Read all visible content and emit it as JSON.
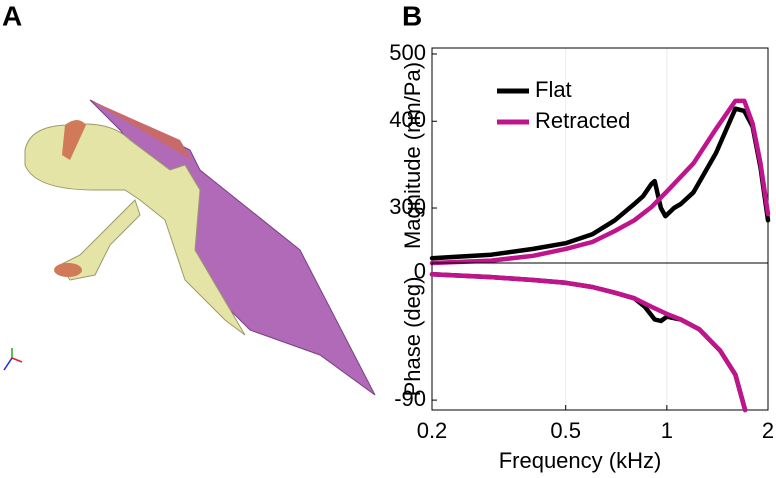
{
  "panels": [
    "A",
    "B"
  ],
  "chart_data": [
    {
      "type": "line",
      "ylabel": "Magnitude (nm/Pa)",
      "xscale": "log",
      "yscale": "log",
      "xlim": [
        0.2,
        2
      ],
      "ylim": [
        250,
        510
      ],
      "yticks": [
        300,
        400,
        500
      ],
      "grid": true,
      "legend": "upper left",
      "series": [
        {
          "name": "Flat",
          "color": "#000000",
          "x": [
            0.2,
            0.3,
            0.4,
            0.5,
            0.6,
            0.7,
            0.8,
            0.85,
            0.9,
            0.92,
            0.96,
            0.99,
            1.05,
            1.1,
            1.2,
            1.4,
            1.6,
            1.7,
            1.8,
            1.9,
            2
          ],
          "values": [
            254,
            257,
            262,
            267,
            275,
            288,
            304,
            312,
            325,
            328,
            300,
            292,
            300,
            304,
            316,
            360,
            417,
            414,
            393,
            343,
            288
          ]
        },
        {
          "name": "Retracted",
          "color": "#c0148c",
          "x": [
            0.2,
            0.3,
            0.4,
            0.5,
            0.6,
            0.7,
            0.8,
            0.9,
            1.0,
            1.2,
            1.4,
            1.6,
            1.7,
            1.8,
            1.9,
            2
          ],
          "values": [
            250,
            252,
            256,
            262,
            268,
            278,
            288,
            301,
            317,
            348,
            390,
            428,
            428,
            397,
            348,
            294
          ]
        }
      ]
    },
    {
      "type": "line",
      "ylabel": "Phase (deg)",
      "xlabel": "Frequency (kHz)",
      "xscale": "log",
      "xlim": [
        0.2,
        2
      ],
      "ylim": [
        -97,
        7
      ],
      "xticks": [
        0.2,
        0.5,
        1,
        2
      ],
      "yticks": [
        0,
        -90
      ],
      "grid": true,
      "series": [
        {
          "name": "Flat",
          "color": "#000000",
          "x": [
            0.2,
            0.3,
            0.4,
            0.5,
            0.6,
            0.7,
            0.8,
            0.86,
            0.92,
            0.96,
            1.0,
            1.1,
            1.25,
            1.44,
            1.6,
            1.71
          ],
          "values": [
            -1,
            -3,
            -5,
            -7,
            -10,
            -14,
            -18,
            -24,
            -33,
            -34,
            -31,
            -33,
            -40,
            -55,
            -72,
            -97
          ]
        },
        {
          "name": "Retracted",
          "color": "#c0148c",
          "x": [
            0.2,
            0.3,
            0.4,
            0.5,
            0.6,
            0.7,
            0.8,
            0.9,
            1.0,
            1.1,
            1.25,
            1.44,
            1.6,
            1.71
          ],
          "values": [
            -1,
            -3,
            -5,
            -7,
            -10,
            -14,
            -18,
            -24,
            -29,
            -33,
            -40,
            -55,
            -72,
            -97
          ]
        }
      ]
    }
  ]
}
